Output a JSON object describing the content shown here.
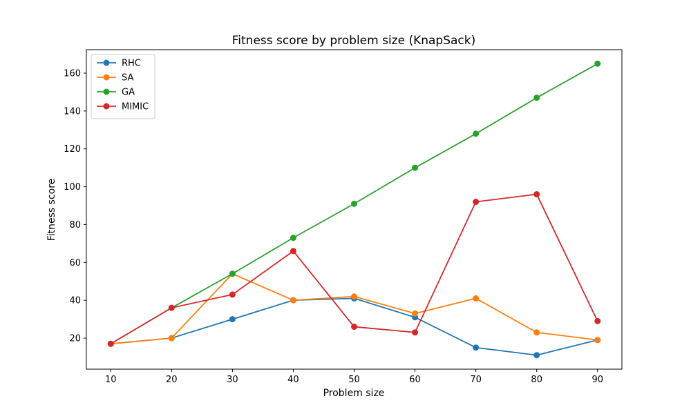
{
  "chart_data": {
    "type": "line",
    "title": "Fitness score by problem size (KnapSack)",
    "xlabel": "Problem size",
    "ylabel": "Fitness score",
    "x": [
      10,
      20,
      30,
      40,
      50,
      60,
      70,
      80,
      90
    ],
    "xlim": [
      6,
      94
    ],
    "ylim": [
      3.6,
      172.4
    ],
    "xticks": [
      10,
      20,
      30,
      40,
      50,
      60,
      70,
      80,
      90
    ],
    "yticks": [
      20,
      40,
      60,
      80,
      100,
      120,
      140,
      160
    ],
    "grid": false,
    "legend_position": "top-left",
    "series": [
      {
        "name": "RHC",
        "color": "#1f77b4",
        "values": [
          17,
          20,
          30,
          40,
          41,
          31,
          15,
          11,
          19
        ]
      },
      {
        "name": "SA",
        "color": "#ff7f0e",
        "values": [
          17,
          20,
          54,
          40,
          42,
          33,
          41,
          23,
          19
        ]
      },
      {
        "name": "GA",
        "color": "#2ca02c",
        "values": [
          17,
          36,
          54,
          73,
          91,
          110,
          128,
          147,
          165
        ]
      },
      {
        "name": "MIMIC",
        "color": "#d62728",
        "values": [
          17,
          36,
          43,
          66,
          26,
          23,
          92,
          96,
          29
        ]
      }
    ]
  }
}
